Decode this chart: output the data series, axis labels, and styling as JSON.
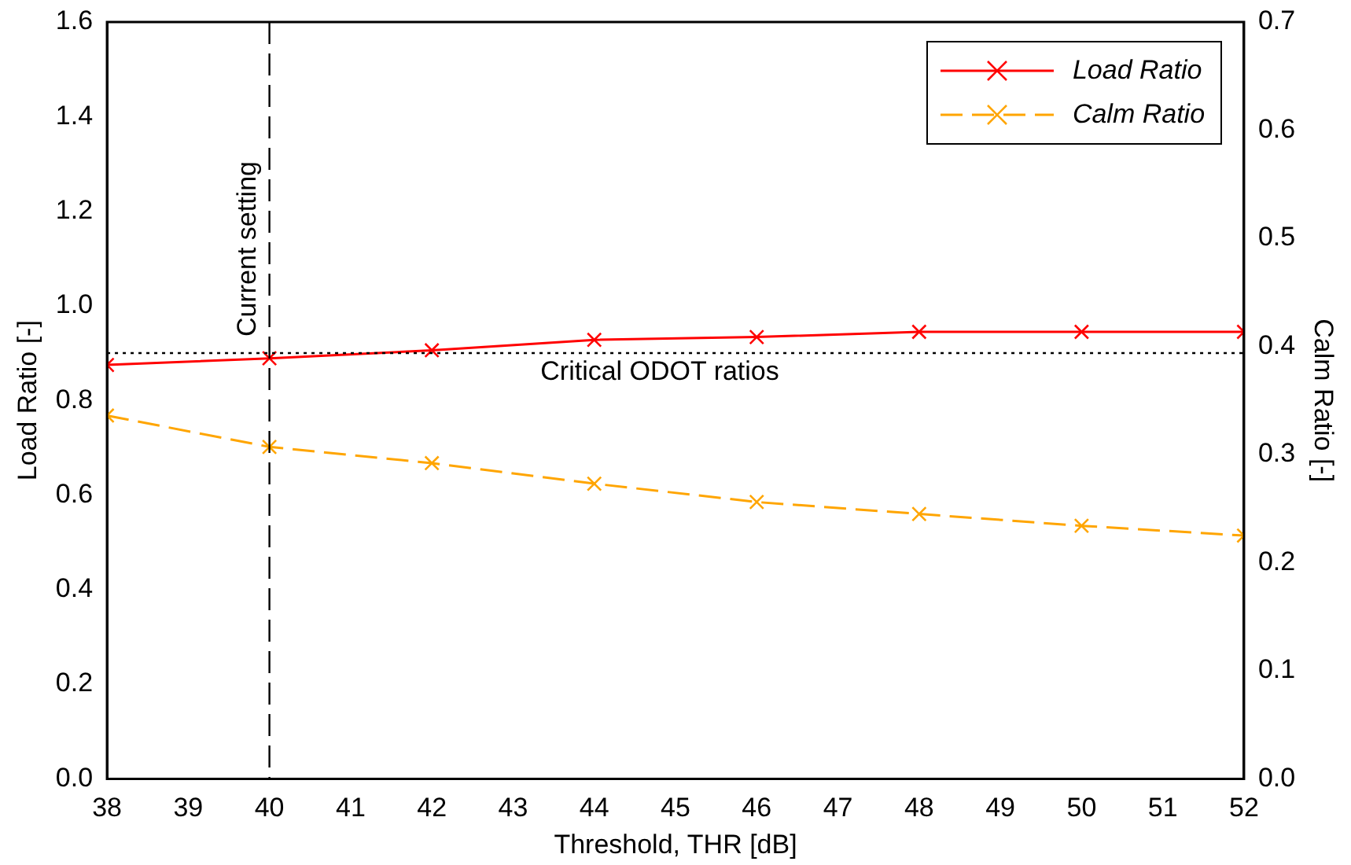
{
  "chart_data": {
    "type": "line",
    "xlabel": "Threshold, THR [dB]",
    "ylabel": "Load Ratio [-]",
    "y2label": "Calm Ratio [-]",
    "x": [
      38,
      40,
      42,
      44,
      46,
      48,
      50,
      52
    ],
    "series": [
      {
        "name": "Load Ratio",
        "color": "#ff0000",
        "line_style": "solid",
        "values": [
          0.875,
          0.889,
          0.906,
          0.928,
          0.934,
          0.945,
          0.945,
          0.945
        ]
      },
      {
        "name": "Calm Ratio",
        "color": "#ffa500",
        "line_style": "dashed",
        "axis": "y2",
        "values": [
          0.336,
          0.307,
          0.292,
          0.273,
          0.256,
          0.245,
          0.234,
          0.225
        ]
      }
    ],
    "xlim": [
      38,
      52
    ],
    "xticks": [
      38,
      39,
      40,
      41,
      42,
      43,
      44,
      45,
      46,
      47,
      48,
      49,
      50,
      51,
      52
    ],
    "ylim": [
      0,
      1.6
    ],
    "yticks": [
      {
        "value": 0,
        "label": "0.0"
      },
      0.2,
      0.4,
      0.6,
      0.8,
      {
        "value": 1,
        "label": "1.0"
      },
      1.2,
      1.4,
      1.6
    ],
    "y2lim": [
      0,
      0.7
    ],
    "y2ticks": [
      {
        "value": 0,
        "label": "0.0"
      },
      0.1,
      0.2,
      0.3,
      0.4,
      0.5,
      0.6,
      0.7
    ],
    "ref_lines": [
      {
        "axis": "x",
        "value": 40,
        "label": "Current setting",
        "color": "#000000",
        "line_style": "dashed"
      },
      {
        "axis": "y",
        "value": 0.9,
        "label": "Critical ODOT ratios",
        "color": "#000000",
        "line_style": "dotted"
      }
    ],
    "marker": "cross",
    "grid": false,
    "legend": "top right"
  }
}
